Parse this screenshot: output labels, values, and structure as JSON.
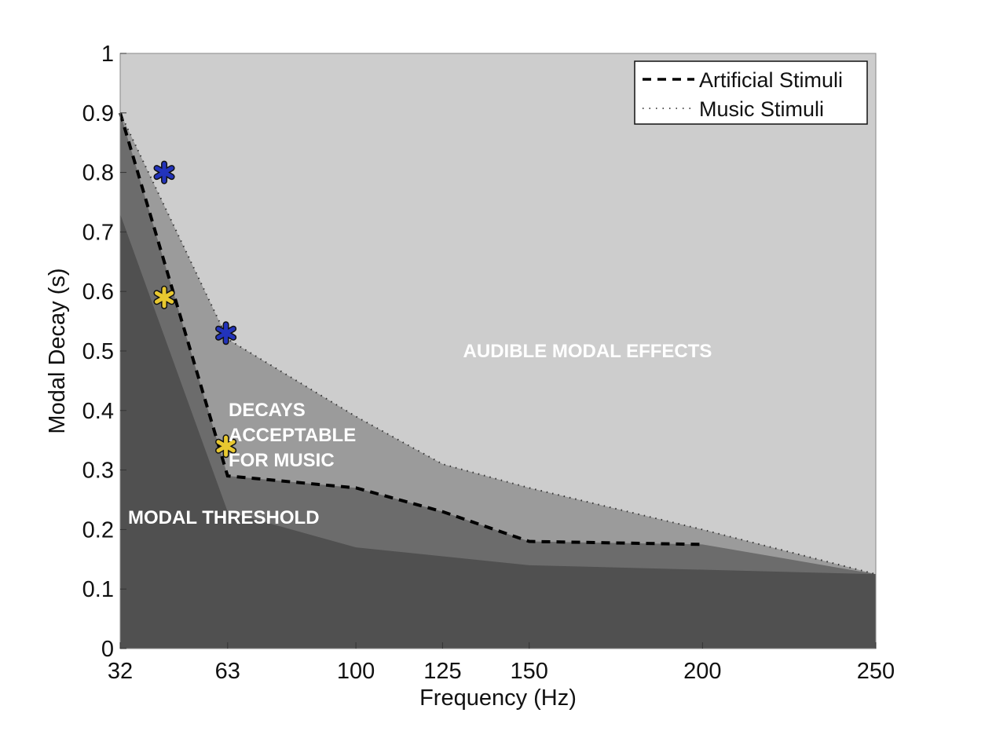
{
  "chart_data": {
    "type": "area",
    "title": "",
    "xlabel": "Frequency (Hz)",
    "ylabel": "Modal Decay (s)",
    "xlim": [
      32,
      250
    ],
    "ylim": [
      0,
      1
    ],
    "xticks": [
      32,
      63,
      100,
      125,
      150,
      200,
      250
    ],
    "yticks": [
      0,
      0.1,
      0.2,
      0.3,
      0.4,
      0.5,
      0.6,
      0.7,
      0.8,
      0.9,
      1
    ],
    "ytick_labels": [
      "0",
      "0.1",
      "0.2",
      "0.3",
      "0.4",
      "0.5",
      "0.6",
      "0.7",
      "0.8",
      "0.9",
      "1"
    ],
    "grid": false,
    "legend_position": "top-right",
    "series": [
      {
        "name": "Artificial Stimuli",
        "style": "dashed",
        "color": "#000000",
        "x": [
          32,
          63,
          100,
          125,
          150,
          200
        ],
        "y": [
          0.9,
          0.29,
          0.27,
          0.23,
          0.18,
          0.175
        ]
      },
      {
        "name": "Music Stimuli",
        "style": "dotted",
        "color": "#333333",
        "x": [
          32,
          63,
          100,
          125,
          150,
          200,
          250
        ],
        "y": [
          0.9,
          0.52,
          0.39,
          0.31,
          0.27,
          0.2,
          0.125
        ]
      }
    ],
    "regions": [
      {
        "label": "AUDIBLE MODAL EFFECTS",
        "color": "#cdcdcd"
      },
      {
        "label": "DECAYS ACCEPTABLE FOR MUSIC",
        "color": "#9b9b9b",
        "x": [
          32,
          63,
          100,
          125,
          150,
          200,
          250
        ],
        "y": [
          0.9,
          0.52,
          0.39,
          0.31,
          0.27,
          0.2,
          0.125
        ]
      },
      {
        "label": "",
        "color": "#6c6c6c",
        "x": [
          32,
          63,
          100,
          125,
          150,
          200,
          250
        ],
        "y": [
          0.9,
          0.29,
          0.27,
          0.23,
          0.18,
          0.175,
          0.125
        ]
      },
      {
        "label": "MODAL THRESHOLD",
        "color": "#505050",
        "x": [
          32,
          63,
          100,
          150,
          250
        ],
        "y": [
          0.73,
          0.23,
          0.17,
          0.14,
          0.125
        ]
      }
    ],
    "markers": [
      {
        "x": 44.7,
        "y": 0.8,
        "color": "#2233bb"
      },
      {
        "x": 62.5,
        "y": 0.53,
        "color": "#2233bb"
      },
      {
        "x": 44.7,
        "y": 0.59,
        "color": "#e8c830"
      },
      {
        "x": 62.5,
        "y": 0.34,
        "color": "#e8c830"
      }
    ],
    "annotations": {
      "audible": "AUDIBLE MODAL EFFECTS",
      "decays": [
        "DECAYS",
        "ACCEPTABLE",
        "FOR MUSIC"
      ],
      "threshold": "MODAL THRESHOLD"
    }
  }
}
